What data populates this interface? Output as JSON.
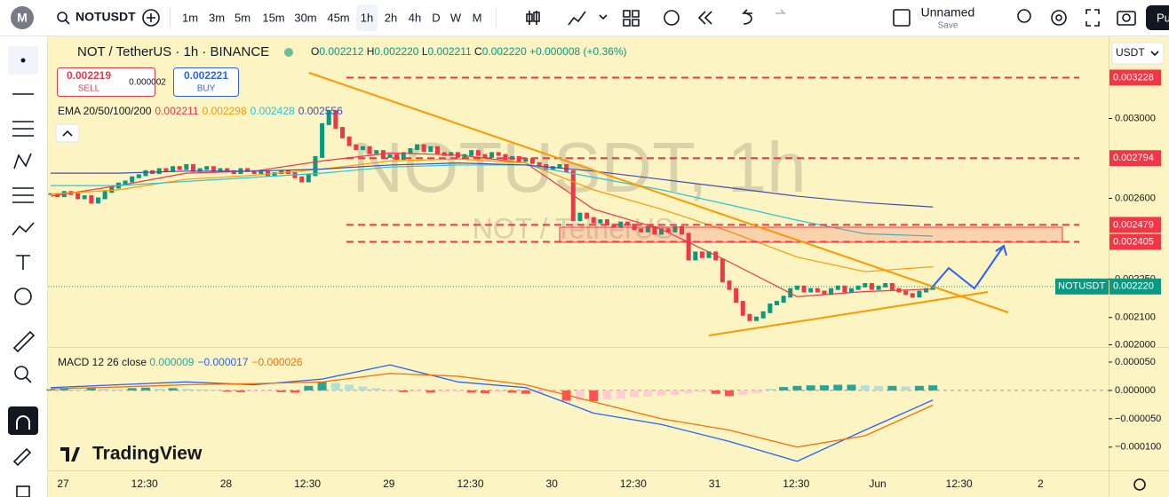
{
  "toolbar": {
    "avatar": "M",
    "symbol": "NOTUSDT",
    "intervals": [
      "1m",
      "3m",
      "5m",
      "15m",
      "30m",
      "45m",
      "1h",
      "2h",
      "4h",
      "D",
      "W",
      "M"
    ],
    "active_interval": "1h",
    "layout_name": "Unnamed",
    "save": "Save",
    "publish": "Pu"
  },
  "legend": {
    "title": "NOT / TetherUS · 1h · BINANCE",
    "o_key": "O",
    "o": "0.002212",
    "h_key": "H",
    "h": "0.002220",
    "l_key": "L",
    "l": "0.002211",
    "c_key": "C",
    "c": "0.002220",
    "change": "+0.000008 (+0.36%)",
    "sell_price": "0.002219",
    "sell": "SELL",
    "spread": "0.000002",
    "buy_price": "0.002221",
    "buy": "BUY"
  },
  "branding": "TradingView",
  "chart_data": [
    {
      "type": "candlestick",
      "currency": "USDT",
      "watermark": "NOTUSDT, 1h",
      "watermark_sub": "NOT / TetherUS",
      "log_scale": true,
      "ylim": [
        0.001995,
        0.00347
      ],
      "yticks": [
        {
          "value": 0.003,
          "label": "0.003000"
        },
        {
          "value": 0.0026,
          "label": "0.002600"
        },
        {
          "value": 0.00225,
          "label": "0.002250"
        },
        {
          "value": 0.0021,
          "label": "0.002100"
        },
        {
          "value": 0.002,
          "label": "0.002000"
        }
      ],
      "x_labels": [
        "27",
        "12:30",
        "28",
        "12:30",
        "29",
        "12:30",
        "30",
        "12:30",
        "31",
        "12:30",
        "Jun",
        "12:30",
        "2"
      ],
      "up_color": "#089981",
      "down_color": "#f23645",
      "close": [
        0.00262,
        0.00261,
        0.00263,
        0.00262,
        0.0026,
        0.00261,
        0.00258,
        0.0026,
        0.00263,
        0.00265,
        0.00267,
        0.00268,
        0.0027,
        0.00271,
        0.00273,
        0.00272,
        0.00274,
        0.00273,
        0.00275,
        0.00274,
        0.00276,
        0.00273,
        0.00274,
        0.00275,
        0.00273,
        0.00274,
        0.00273,
        0.00272,
        0.00274,
        0.00273,
        0.00272,
        0.00273,
        0.00271,
        0.00272,
        0.00273,
        0.00272,
        0.0027,
        0.00268,
        0.00271,
        0.0028,
        0.00297,
        0.00304,
        0.00295,
        0.0029,
        0.00286,
        0.00284,
        0.00285,
        0.00282,
        0.00283,
        0.0028,
        0.00281,
        0.00279,
        0.00282,
        0.00284,
        0.00286,
        0.00283,
        0.00285,
        0.00282,
        0.00281,
        0.00282,
        0.0028,
        0.00281,
        0.00283,
        0.00281,
        0.0028,
        0.00282,
        0.00281,
        0.00279,
        0.0028,
        0.00278,
        0.00279,
        0.00277,
        0.00276,
        0.00274,
        0.00275,
        0.00276,
        0.00273,
        0.0025,
        0.00253,
        0.00251,
        0.00249,
        0.0025,
        0.00248,
        0.00247,
        0.00249,
        0.00248,
        0.00246,
        0.00245,
        0.00247,
        0.00244,
        0.00246,
        0.00245,
        0.00247,
        0.00244,
        0.00233,
        0.00236,
        0.00234,
        0.00236,
        0.00233,
        0.00224,
        0.00221,
        0.00216,
        0.00211,
        0.00209,
        0.0021,
        0.00212,
        0.00215,
        0.00216,
        0.00218,
        0.00221,
        0.00222,
        0.0022,
        0.00221,
        0.0022,
        0.00219,
        0.00221,
        0.00222,
        0.0022,
        0.00221,
        0.00222,
        0.00223,
        0.00221,
        0.00222,
        0.00223,
        0.00221,
        0.0022,
        0.00219,
        0.00218,
        0.0022,
        0.00221,
        0.00222
      ],
      "indicator_label": "EMA 20/50/100/200",
      "series": [
        {
          "color": "#f23645",
          "value_label": "0.002211",
          "values": [
            0.00261,
            0.00266,
            0.00272,
            0.00273,
            0.00278,
            0.00282,
            0.00281,
            0.00277,
            0.00255,
            0.00246,
            0.00232,
            0.00218,
            0.0022,
            0.00221
          ]
        },
        {
          "color": "#ff9800",
          "value_label": "0.002298",
          "values": [
            0.00262,
            0.00264,
            0.00269,
            0.00271,
            0.00274,
            0.00278,
            0.00279,
            0.00277,
            0.00264,
            0.00255,
            0.00245,
            0.00234,
            0.00228,
            0.0023
          ]
        },
        {
          "color": "#26c6da",
          "value_label": "0.002428",
          "values": [
            0.00266,
            0.00266,
            0.00268,
            0.0027,
            0.00272,
            0.00275,
            0.00276,
            0.00276,
            0.0027,
            0.00264,
            0.00257,
            0.0025,
            0.00244,
            0.00243
          ]
        },
        {
          "color": "#3f51b5",
          "value_label": "0.002556",
          "values": [
            0.00272,
            0.00272,
            0.00273,
            0.00273,
            0.00274,
            0.00276,
            0.00277,
            0.00276,
            0.00273,
            0.00269,
            0.00265,
            0.00261,
            0.00258,
            0.00256
          ]
        }
      ],
      "price_levels": [
        {
          "value": 0.003228,
          "label": "0.003228"
        },
        {
          "value": 0.002794,
          "label": "0.002794"
        },
        {
          "value": 0.002479,
          "label": "0.002479"
        },
        {
          "value": 0.002405,
          "label": "0.002405"
        }
      ],
      "last_price": {
        "name": "NOTUSDT",
        "value": 0.00222,
        "label": "0.002220"
      }
    },
    {
      "type": "macd",
      "indicator_label": "MACD 12 26 close",
      "ylim": [
        -0.000141,
        7.5e-05
      ],
      "yticks": [
        {
          "value": 5e-05,
          "label": "0.000050"
        },
        {
          "value": 0,
          "label": "0.000000"
        },
        {
          "value": -5e-05,
          "label": "−0.000050"
        },
        {
          "value": -0.0001,
          "label": "−0.000100"
        }
      ],
      "histogram_label": "0.000009",
      "histogram": [
        2e-06,
        3e-06,
        2e-06,
        4e-06,
        3e-06,
        2e-06,
        4e-06,
        5e-06,
        3e-06,
        4e-06,
        3e-06,
        2e-06,
        1e-06,
        -2e-06,
        -3e-06,
        -2e-06,
        -1e-06,
        -3e-06,
        -4e-06,
        8e-06,
        1.5e-05,
        1.3e-05,
        1e-05,
        7e-06,
        4e-06,
        -2e-06,
        -3e-06,
        -2e-06,
        -4e-06,
        -3e-06,
        -2e-06,
        -4e-06,
        -5e-06,
        -3e-06,
        -4e-06,
        -6e-06,
        -5e-06,
        -4e-06,
        -1.8e-05,
        -1.7e-05,
        -1.9e-05,
        -1.6e-05,
        -1.4e-05,
        -1.2e-05,
        -1e-05,
        -9e-06,
        -8e-06,
        -5e-06,
        -3e-06,
        -6e-06,
        -1e-05,
        -8e-06,
        -5e-06,
        3e-06,
        6e-06,
        8e-06,
        9e-06,
        9e-06,
        1e-05,
        1e-05,
        9e-06,
        8e-06,
        8e-06,
        7e-06,
        8e-06,
        9e-06
      ],
      "series": [
        {
          "color": "#2962ff",
          "value_label": "−0.000017",
          "values": [
            5e-06,
            1e-05,
            1.5e-05,
            1e-05,
            2e-05,
            4.5e-05,
            1.5e-05,
            5e-06,
            -4e-05,
            -6e-05,
            -9e-05,
            -0.000125,
            -7e-05,
            -1.7e-05
          ]
        },
        {
          "color": "#ff6d00",
          "value_label": "−0.000026",
          "values": [
            3e-06,
            6e-06,
            1e-05,
            1.2e-05,
            1.5e-05,
            3e-05,
            2.5e-05,
            1e-05,
            -2e-05,
            -5e-05,
            -7e-05,
            -0.0001,
            -8e-05,
            -2.6e-05
          ]
        }
      ]
    }
  ]
}
